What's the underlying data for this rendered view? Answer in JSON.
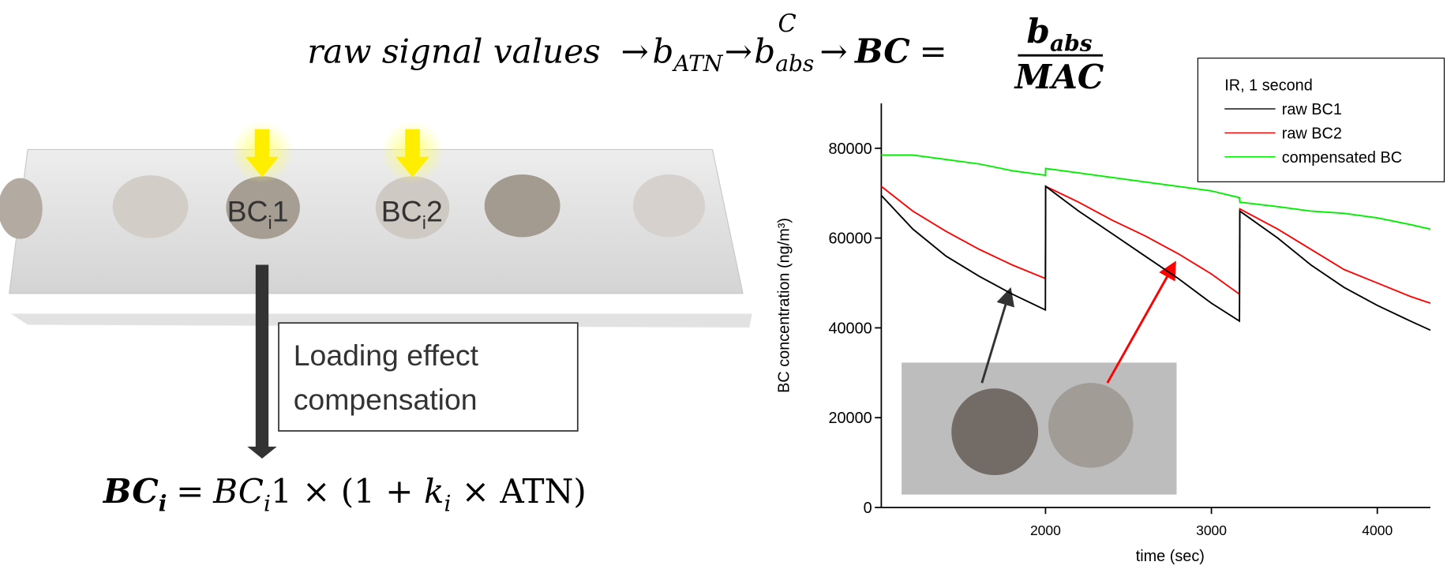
{
  "equation_top": {
    "input": "raw signal values",
    "arrow": "→",
    "attenuation": {
      "base": "b",
      "sub": "ATN"
    },
    "arrow_label": "C",
    "absorption": {
      "base": "b",
      "sub": "abs"
    },
    "result": "BC",
    "equals": "=",
    "numerator": {
      "base": "b",
      "sub": "abs"
    },
    "denominator": "MAC"
  },
  "filter_spots": [
    {
      "base": "BC",
      "sub": "i",
      "index": "1"
    },
    {
      "base": "BC",
      "sub": "i",
      "index": "2"
    }
  ],
  "compensation_box": [
    "Loading effect",
    "compensation"
  ],
  "equation_bottom": {
    "lhs": {
      "base": "BC",
      "sub": "i"
    },
    "equals": "=",
    "term": {
      "base": "BC",
      "sub": "i"
    },
    "rest1": "1 × (1 + ",
    "k": {
      "base": "k",
      "sub": "i"
    },
    "rest2": " × ATN)"
  },
  "chart_data": {
    "type": "line",
    "x_label": "time (sec)",
    "y_label": "BC concentration (ng/m³)",
    "legend_title": "IR, 1 second",
    "legend": "top-right",
    "xlim": [
      1010,
      4320
    ],
    "xticks": [
      2000,
      3000,
      4000
    ],
    "ylim": [
      0,
      90000
    ],
    "yticks": [
      0,
      20000,
      40000,
      60000,
      80000
    ],
    "x": [
      1010,
      1200,
      1400,
      1600,
      1800,
      1999,
      2001,
      2200,
      2400,
      2600,
      2800,
      3000,
      3169,
      3171,
      3400,
      3600,
      3800,
      4000,
      4200,
      4320
    ],
    "series": [
      {
        "name": "raw BC1",
        "color": "#000000",
        "values": [
          69500,
          62000,
          56000,
          51500,
          47500,
          44000,
          71500,
          66000,
          61000,
          56000,
          51000,
          45500,
          41500,
          66000,
          60000,
          54000,
          49000,
          45000,
          41500,
          39500
        ]
      },
      {
        "name": "raw BC2",
        "color": "#ff0000",
        "values": [
          71500,
          66000,
          61500,
          57500,
          54000,
          51000,
          71500,
          68000,
          64000,
          60500,
          56500,
          52000,
          47500,
          66500,
          62000,
          57500,
          53000,
          50000,
          47000,
          45500
        ]
      },
      {
        "name": "compensated BC",
        "color": "#00ee00",
        "values": [
          78500,
          78500,
          77500,
          76500,
          75000,
          74000,
          75500,
          74500,
          73500,
          72500,
          71500,
          70500,
          69000,
          68000,
          67000,
          66000,
          65500,
          64500,
          63000,
          62000
        ]
      }
    ]
  }
}
